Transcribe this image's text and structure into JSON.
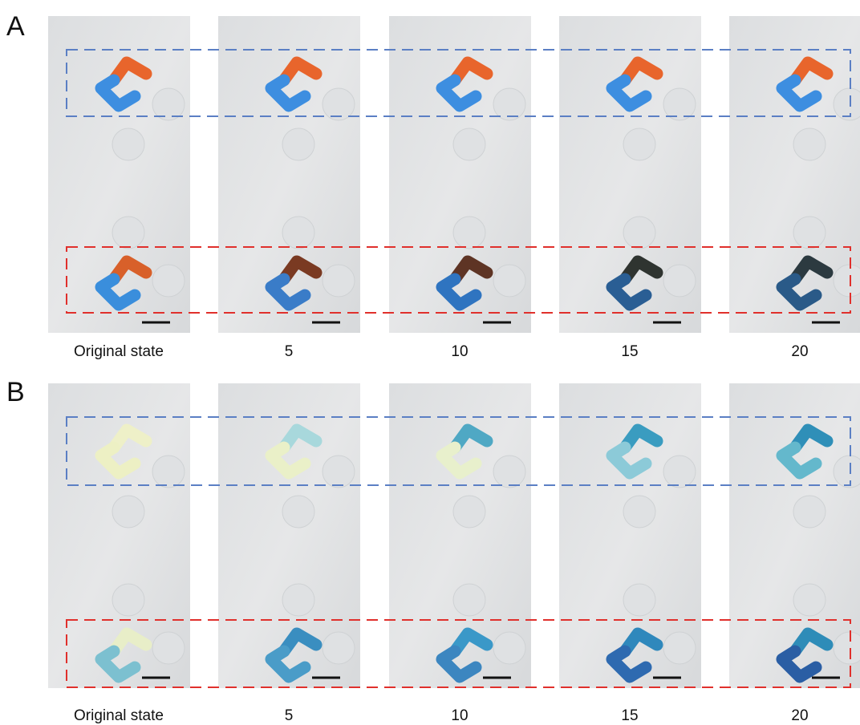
{
  "panels": [
    {
      "label": "A",
      "captions": [
        "Original state",
        "5",
        "10",
        "15",
        "20"
      ]
    },
    {
      "label": "B",
      "captions": [
        "Original state",
        "5",
        "10",
        "15",
        "20"
      ]
    }
  ]
}
